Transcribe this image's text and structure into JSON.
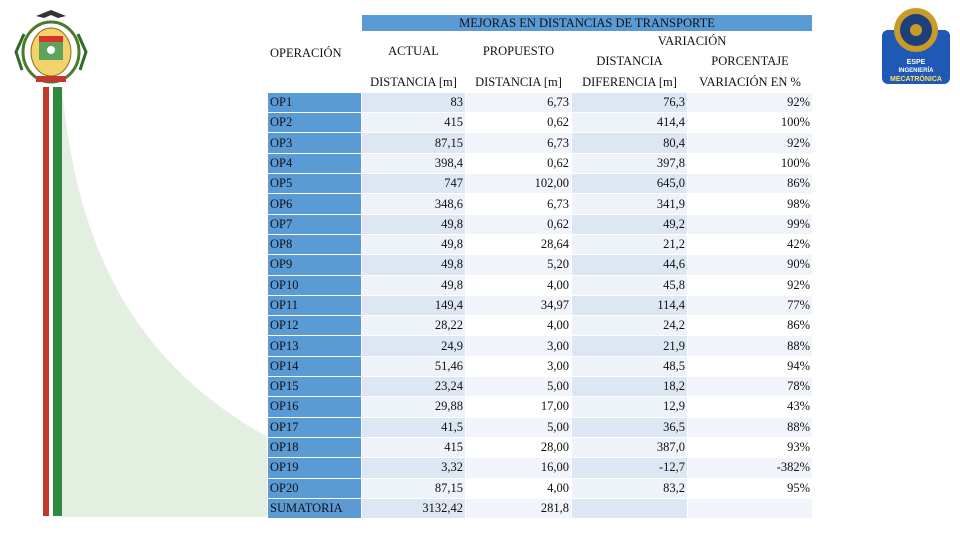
{
  "table": {
    "title": "MEJORAS EN DISTANCIAS DE TRANSPORTE",
    "operacion_label": "OPERACIÓN",
    "actual_label": "ACTUAL",
    "propuesto_label": "PROPUESTO",
    "variacion_label": "VARIACIÓN",
    "distancia_label": "DISTANCIA",
    "porcentaje_label": "PORCENTAJE",
    "unit_actual": "DISTANCIA [m]",
    "unit_propuesto": "DISTANCIA [m]",
    "unit_diferencia": "DIFERENCIA [m]",
    "unit_variacion": "VARIACIÓN EN %",
    "rows": [
      {
        "op": "OP1",
        "actual": "83",
        "propuesto": "6,73",
        "diferencia": "76,3",
        "variacion": "92%"
      },
      {
        "op": "OP2",
        "actual": "415",
        "propuesto": "0,62",
        "diferencia": "414,4",
        "variacion": "100%"
      },
      {
        "op": "OP3",
        "actual": "87,15",
        "propuesto": "6,73",
        "diferencia": "80,4",
        "variacion": "92%"
      },
      {
        "op": "OP4",
        "actual": "398,4",
        "propuesto": "0,62",
        "diferencia": "397,8",
        "variacion": "100%"
      },
      {
        "op": "OP5",
        "actual": "747",
        "propuesto": "102,00",
        "diferencia": "645,0",
        "variacion": "86%"
      },
      {
        "op": "OP6",
        "actual": "348,6",
        "propuesto": "6,73",
        "diferencia": "341,9",
        "variacion": "98%"
      },
      {
        "op": "OP7",
        "actual": "49,8",
        "propuesto": "0,62",
        "diferencia": "49,2",
        "variacion": "99%"
      },
      {
        "op": "OP8",
        "actual": "49,8",
        "propuesto": "28,64",
        "diferencia": "21,2",
        "variacion": "42%"
      },
      {
        "op": "OP9",
        "actual": "49,8",
        "propuesto": "5,20",
        "diferencia": "44,6",
        "variacion": "90%"
      },
      {
        "op": "OP10",
        "actual": "49,8",
        "propuesto": "4,00",
        "diferencia": "45,8",
        "variacion": "92%"
      },
      {
        "op": "OP11",
        "actual": "149,4",
        "propuesto": "34,97",
        "diferencia": "114,4",
        "variacion": "77%"
      },
      {
        "op": "OP12",
        "actual": "28,22",
        "propuesto": "4,00",
        "diferencia": "24,2",
        "variacion": "86%"
      },
      {
        "op": "OP13",
        "actual": "24,9",
        "propuesto": "3,00",
        "diferencia": "21,9",
        "variacion": "88%"
      },
      {
        "op": "OP14",
        "actual": "51,46",
        "propuesto": "3,00",
        "diferencia": "48,5",
        "variacion": "94%"
      },
      {
        "op": "OP15",
        "actual": "23,24",
        "propuesto": "5,00",
        "diferencia": "18,2",
        "variacion": "78%"
      },
      {
        "op": "OP16",
        "actual": "29,88",
        "propuesto": "17,00",
        "diferencia": "12,9",
        "variacion": "43%"
      },
      {
        "op": "OP17",
        "actual": "41,5",
        "propuesto": "5,00",
        "diferencia": "36,5",
        "variacion": "88%"
      },
      {
        "op": "OP18",
        "actual": "415",
        "propuesto": "28,00",
        "diferencia": "387,0",
        "variacion": "93%"
      },
      {
        "op": "OP19",
        "actual": "3,32",
        "propuesto": "16,00",
        "diferencia": "-12,7",
        "variacion": "-382%"
      },
      {
        "op": "OP20",
        "actual": "87,15",
        "propuesto": "4,00",
        "diferencia": "83,2",
        "variacion": "95%"
      },
      {
        "op": "SUMATORIA",
        "actual": "3132,42",
        "propuesto": "281,8",
        "diferencia": "",
        "variacion": ""
      }
    ]
  },
  "logos": {
    "left": "university-crest-icon",
    "right": "ingenieria-mecatronica-logo",
    "right_text_top": "ESPE",
    "right_text_mid": "INGENIERÍA",
    "right_text_bottom": "MECATRÓNICA"
  },
  "colors": {
    "header_blue": "#5b9bd5",
    "cell_light": "#dde7f3",
    "stripe_red": "#c0392b",
    "stripe_green": "#2e8b3e"
  }
}
